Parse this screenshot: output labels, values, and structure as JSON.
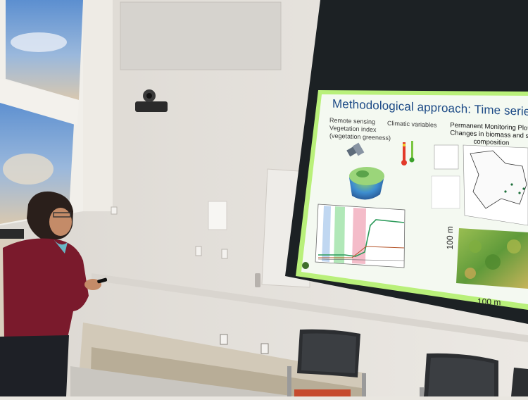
{
  "slide": {
    "title": "Methodological approach: Time serie",
    "remote_sensing": [
      "Remote sensing",
      "Vegetation index",
      "(vegetation greeness)"
    ],
    "climatic": "Climatic variables",
    "pmp": [
      "Permanent Monitoring Plots",
      "Changes in biomass and sp",
      "composition"
    ],
    "scale_vertical": "100 m",
    "scale_horizontal": "100 m"
  },
  "colors": {
    "screen_green": "#b9f07a",
    "slide_bg": "#f4f9f1",
    "title_blue": "#1c4a86",
    "sweater": "#7a1a2c",
    "wall": "#e6e2dc"
  }
}
